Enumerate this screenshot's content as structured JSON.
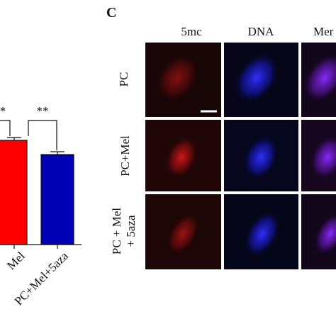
{
  "bar_panel": {
    "significance": [
      "*",
      "**"
    ],
    "categories": [
      "Mel",
      "PC+Mel+5aza"
    ]
  },
  "image_panel": {
    "panel_label": "C",
    "columns": [
      "5mc",
      "DNA",
      "Mer"
    ],
    "row_labels": [
      [
        "PC"
      ],
      [
        "PC+Mel"
      ],
      [
        "PC + Mel",
        "+ 5aza"
      ]
    ]
  }
}
